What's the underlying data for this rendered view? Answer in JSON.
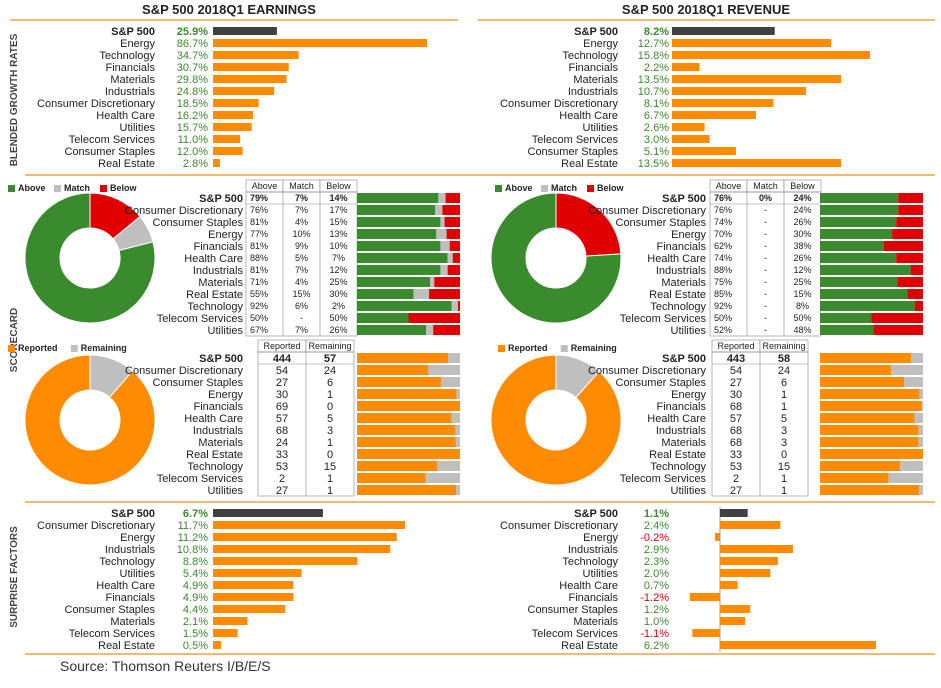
{
  "titles": {
    "earnings": "S&P 500 2018Q1 EARNINGS",
    "revenue": "S&P 500 2018Q1 REVENUE"
  },
  "side_labels": {
    "growth": "BLENDED GROWTH RATES",
    "scorecard": "SCORECARD",
    "surprise": "SURPRISE FACTORS"
  },
  "source": "Source: Thomson Reuters I/B/E/S",
  "colors": {
    "orange": "#ff8c00",
    "dark_bar": "#404040",
    "green": "#3a8a2e",
    "gray": "#bfbfbf",
    "red": "#e00000",
    "divider": "#f0a040",
    "pos_text": "#3a8a2e",
    "neg_text": "#e00000"
  },
  "sectors": [
    "S&P 500",
    "Consumer Discretionary",
    "Consumer Staples",
    "Energy",
    "Financials",
    "Health Care",
    "Industrials",
    "Materials",
    "Real Estate",
    "Technology",
    "Telecom Services",
    "Utilities"
  ],
  "legends": {
    "scorecard": [
      "Above",
      "Match",
      "Below"
    ],
    "reported": [
      "Reported",
      "Remaining"
    ]
  },
  "table_headers": {
    "scorecard": [
      "Above",
      "Match",
      "Below"
    ],
    "reported": [
      "Reported",
      "Remaining"
    ]
  },
  "chart_data": [
    {
      "id": "earnings_growth",
      "type": "bar",
      "title": "S&P 500 2018Q1 EARNINGS",
      "categories": [
        "S&P 500",
        "Energy",
        "Technology",
        "Financials",
        "Materials",
        "Industrials",
        "Consumer Discretionary",
        "Health Care",
        "Utilities",
        "Telecom Services",
        "Consumer Staples",
        "Real Estate"
      ],
      "values": [
        25.9,
        86.7,
        34.7,
        30.7,
        29.8,
        24.8,
        18.5,
        16.2,
        15.7,
        11.0,
        12.0,
        2.8
      ],
      "labels": [
        "25.9%",
        "86.7%",
        "34.7%",
        "30.7%",
        "29.8%",
        "24.8%",
        "18.5%",
        "16.2%",
        "15.7%",
        "11.0%",
        "12.0%",
        "2.8%"
      ]
    },
    {
      "id": "revenue_growth",
      "type": "bar",
      "title": "S&P 500 2018Q1 REVENUE",
      "categories": [
        "S&P 500",
        "Energy",
        "Technology",
        "Financials",
        "Materials",
        "Industrials",
        "Consumer Discretionary",
        "Health Care",
        "Utilities",
        "Telecom Services",
        "Consumer Staples",
        "Real Estate"
      ],
      "values": [
        8.2,
        12.7,
        15.8,
        2.2,
        13.5,
        10.7,
        8.1,
        6.7,
        2.6,
        3.0,
        5.1,
        13.5
      ],
      "labels": [
        "8.2%",
        "12.7%",
        "15.8%",
        "2.2%",
        "13.5%",
        "10.7%",
        "8.1%",
        "6.7%",
        "2.6%",
        "3.0%",
        "5.1%",
        "13.5%"
      ]
    },
    {
      "id": "earnings_scorecard",
      "type": "table",
      "above": [
        79,
        76,
        81,
        77,
        81,
        88,
        81,
        71,
        55,
        92,
        50,
        67
      ],
      "match": [
        7,
        7,
        4,
        10,
        9,
        5,
        7,
        4,
        15,
        6,
        0,
        7
      ],
      "below": [
        14,
        17,
        15,
        13,
        10,
        7,
        12,
        25,
        30,
        2,
        50,
        26
      ],
      "cells": [
        [
          "79%",
          "7%",
          "14%"
        ],
        [
          "76%",
          "7%",
          "17%"
        ],
        [
          "81%",
          "4%",
          "15%"
        ],
        [
          "77%",
          "10%",
          "13%"
        ],
        [
          "81%",
          "9%",
          "10%"
        ],
        [
          "88%",
          "5%",
          "7%"
        ],
        [
          "81%",
          "7%",
          "12%"
        ],
        [
          "71%",
          "4%",
          "25%"
        ],
        [
          "55%",
          "15%",
          "30%"
        ],
        [
          "92%",
          "6%",
          "2%"
        ],
        [
          "50%",
          "-",
          "50%"
        ],
        [
          "67%",
          "7%",
          "26%"
        ]
      ]
    },
    {
      "id": "earnings_scorecard_donut",
      "type": "pie",
      "categories": [
        "Above",
        "Match",
        "Below"
      ],
      "values": [
        79,
        7,
        14
      ]
    },
    {
      "id": "revenue_scorecard",
      "type": "table",
      "above": [
        76,
        76,
        74,
        70,
        62,
        74,
        88,
        75,
        85,
        92,
        50,
        52
      ],
      "match": [
        0,
        0,
        0,
        0,
        0,
        0,
        0,
        0,
        0,
        0,
        0,
        0
      ],
      "below": [
        24,
        24,
        26,
        30,
        38,
        26,
        12,
        25,
        15,
        8,
        50,
        48
      ],
      "cells": [
        [
          "76%",
          "0%",
          "24%"
        ],
        [
          "76%",
          "-",
          "24%"
        ],
        [
          "74%",
          "-",
          "26%"
        ],
        [
          "70%",
          "-",
          "30%"
        ],
        [
          "62%",
          "-",
          "38%"
        ],
        [
          "74%",
          "-",
          "26%"
        ],
        [
          "88%",
          "-",
          "12%"
        ],
        [
          "75%",
          "-",
          "25%"
        ],
        [
          "85%",
          "-",
          "15%"
        ],
        [
          "92%",
          "-",
          "8%"
        ],
        [
          "50%",
          "-",
          "50%"
        ],
        [
          "52%",
          "-",
          "48%"
        ]
      ]
    },
    {
      "id": "revenue_scorecard_donut",
      "type": "pie",
      "categories": [
        "Above",
        "Match",
        "Below"
      ],
      "values": [
        76,
        0,
        24
      ]
    },
    {
      "id": "earnings_reported",
      "type": "table",
      "reported": [
        444,
        54,
        27,
        30,
        69,
        57,
        68,
        24,
        33,
        53,
        2,
        27
      ],
      "remaining": [
        57,
        24,
        6,
        1,
        0,
        5,
        3,
        1,
        0,
        15,
        1,
        1
      ]
    },
    {
      "id": "earnings_reported_donut",
      "type": "pie",
      "categories": [
        "Reported",
        "Remaining"
      ],
      "values": [
        444,
        57
      ]
    },
    {
      "id": "revenue_reported",
      "type": "table",
      "reported": [
        443,
        54,
        27,
        30,
        68,
        57,
        68,
        68,
        33,
        53,
        2,
        27
      ],
      "remaining": [
        58,
        24,
        6,
        1,
        1,
        5,
        3,
        3,
        0,
        15,
        1,
        1
      ]
    },
    {
      "id": "revenue_reported_donut",
      "type": "pie",
      "categories": [
        "Reported",
        "Remaining"
      ],
      "values": [
        443,
        58
      ]
    },
    {
      "id": "earnings_surprise",
      "type": "bar",
      "categories": [
        "S&P 500",
        "Consumer Discretionary",
        "Energy",
        "Industrials",
        "Technology",
        "Utilities",
        "Health Care",
        "Financials",
        "Consumer Staples",
        "Materials",
        "Telecom Services",
        "Real Estate"
      ],
      "values": [
        6.7,
        11.7,
        11.2,
        10.8,
        8.8,
        5.4,
        4.9,
        4.9,
        4.4,
        2.1,
        1.5,
        0.5
      ],
      "labels": [
        "6.7%",
        "11.7%",
        "11.2%",
        "10.8%",
        "8.8%",
        "5.4%",
        "4.9%",
        "4.9%",
        "4.4%",
        "2.1%",
        "1.5%",
        "0.5%"
      ]
    },
    {
      "id": "revenue_surprise",
      "type": "bar",
      "categories": [
        "S&P 500",
        "Consumer Discretionary",
        "Energy",
        "Industrials",
        "Technology",
        "Utilities",
        "Health Care",
        "Financials",
        "Consumer Staples",
        "Materials",
        "Telecom Services",
        "Real Estate"
      ],
      "values": [
        1.1,
        2.4,
        -0.2,
        2.9,
        2.3,
        2.0,
        0.7,
        -1.2,
        1.2,
        1.0,
        -1.1,
        6.2
      ],
      "labels": [
        "1.1%",
        "2.4%",
        "-0.2%",
        "2.9%",
        "2.3%",
        "2.0%",
        "0.7%",
        "-1.2%",
        "1.2%",
        "1.0%",
        "-1.1%",
        "6.2%"
      ]
    }
  ]
}
